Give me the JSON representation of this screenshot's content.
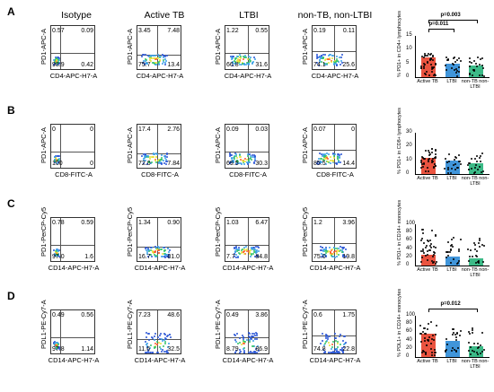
{
  "panel_letters": [
    "A",
    "B",
    "C",
    "D"
  ],
  "column_headers": [
    "Isotype",
    "Active TB",
    "LTBI",
    "non-TB, non-LTBI"
  ],
  "rows": [
    {
      "letter": "A",
      "ylabel": "PD1-APC-A",
      "xlabel": "CD4-APC-H7-A",
      "plots": [
        {
          "ul": "0.57",
          "ur": "0.09",
          "ll": "98.9",
          "lr": "0.42"
        },
        {
          "ul": "3.45",
          "ur": "7.48",
          "ll": "75.7",
          "lr": "13.4"
        },
        {
          "ul": "1.22",
          "ur": "0.55",
          "ll": "66.8",
          "lr": "31.6"
        },
        {
          "ul": "0.19",
          "ur": "0.11",
          "ll": "74.1",
          "lr": "25.6"
        }
      ]
    },
    {
      "letter": "B",
      "ylabel": "PD1-APC-A",
      "xlabel": "CD8-FITC-A",
      "plots": [
        {
          "ul": "0",
          "ur": "0",
          "ll": "100",
          "lr": "0"
        },
        {
          "ul": "17.4",
          "ur": "2.76",
          "ll": "72.0",
          "lr": "7.84"
        },
        {
          "ul": "0.09",
          "ur": "0.03",
          "ll": "69.5",
          "lr": "30.3"
        },
        {
          "ul": "0.07",
          "ur": "0",
          "ll": "85.5",
          "lr": "14.4"
        }
      ]
    },
    {
      "letter": "C",
      "ylabel": "PD1-PerCP-Cy5",
      "xlabel": "CD14-APC-H7-A",
      "plots": [
        {
          "ul": "0.78",
          "ur": "0.59",
          "ll": "97.0",
          "lr": "1.6"
        },
        {
          "ul": "1.34",
          "ur": "0.90",
          "ll": "16.7",
          "lr": "81.0"
        },
        {
          "ul": "1.03",
          "ur": "6.47",
          "ll": "7.7",
          "lr": "84.8"
        },
        {
          "ul": "1.2",
          "ur": "3.96",
          "ll": "75.0",
          "lr": "19.8"
        }
      ]
    },
    {
      "letter": "D",
      "ylabel": "PDL1-PE-Cy7-A",
      "xlabel": "CD14-APC-H7-A",
      "plots": [
        {
          "ul": "0.49",
          "ur": "0.56",
          "ll": "97.8",
          "lr": "1.14"
        },
        {
          "ul": "7.23",
          "ur": "48.6",
          "ll": "11.6",
          "lr": "32.5"
        },
        {
          "ul": "0.49",
          "ur": "3.86",
          "ll": "8.79",
          "lr": "86.9"
        },
        {
          "ul": "0.6",
          "ur": "1.75",
          "ll": "74.8",
          "lr": "22.8"
        }
      ]
    }
  ],
  "summary_plots": [
    {
      "ylabel": "% PD1+ in CD4+ lymphocytes",
      "yticks": [
        "0",
        "5",
        "10",
        "15"
      ],
      "categories": [
        "Active TB",
        "LTBI",
        "non-TB non-LTBI"
      ],
      "pvalues": [
        "p=0.003",
        "p=0.011"
      ],
      "colors": [
        "#e8412b",
        "#2b8ad6",
        "#27b37a"
      ]
    },
    {
      "ylabel": "% PD1+ in CD8+ lymphocytes",
      "yticks": [
        "0",
        "10",
        "20",
        "30"
      ],
      "categories": [
        "Active TB",
        "LTBI",
        "non-TB non-LTBI"
      ],
      "pvalues": [],
      "colors": [
        "#e8412b",
        "#2b8ad6",
        "#27b37a"
      ]
    },
    {
      "ylabel": "% PD1+ in CD14+ monocytes",
      "yticks": [
        "0",
        "20",
        "40",
        "60",
        "80",
        "100"
      ],
      "categories": [
        "Active TB",
        "LTBI",
        "non-TB non-LTBI"
      ],
      "pvalues": [],
      "colors": [
        "#e8412b",
        "#2b8ad6",
        "#27b37a"
      ]
    },
    {
      "ylabel": "% PDL1+ in CD14+ monocytes",
      "yticks": [
        "0",
        "20",
        "40",
        "60",
        "80",
        "100"
      ],
      "categories": [
        "Active TB",
        "LTBI",
        "non-TB non-LTBI"
      ],
      "pvalues": [
        "p=0.012"
      ],
      "colors": [
        "#e8412b",
        "#2b8ad6",
        "#27b37a"
      ]
    }
  ]
}
